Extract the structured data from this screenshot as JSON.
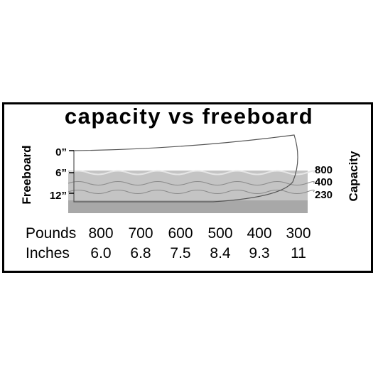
{
  "title": "capacity vs freeboard",
  "left_axis_label": "Freeboard",
  "right_axis_label": "Capacity",
  "depth_marks": [
    "0”",
    "6”",
    "12”"
  ],
  "capacity_marks": [
    "800",
    "400",
    "230"
  ],
  "table": {
    "rows": [
      {
        "label": "Pounds",
        "values": [
          "800",
          "700",
          "600",
          "500",
          "400",
          "300"
        ]
      },
      {
        "label": "Inches",
        "values": [
          "6.0",
          "6.8",
          "7.5",
          "8.4",
          "9.3",
          "11"
        ]
      }
    ]
  },
  "colors": {
    "water": "#c4c4c4",
    "water_deep": "#a8a8a8",
    "hull_stroke": "#555555"
  }
}
